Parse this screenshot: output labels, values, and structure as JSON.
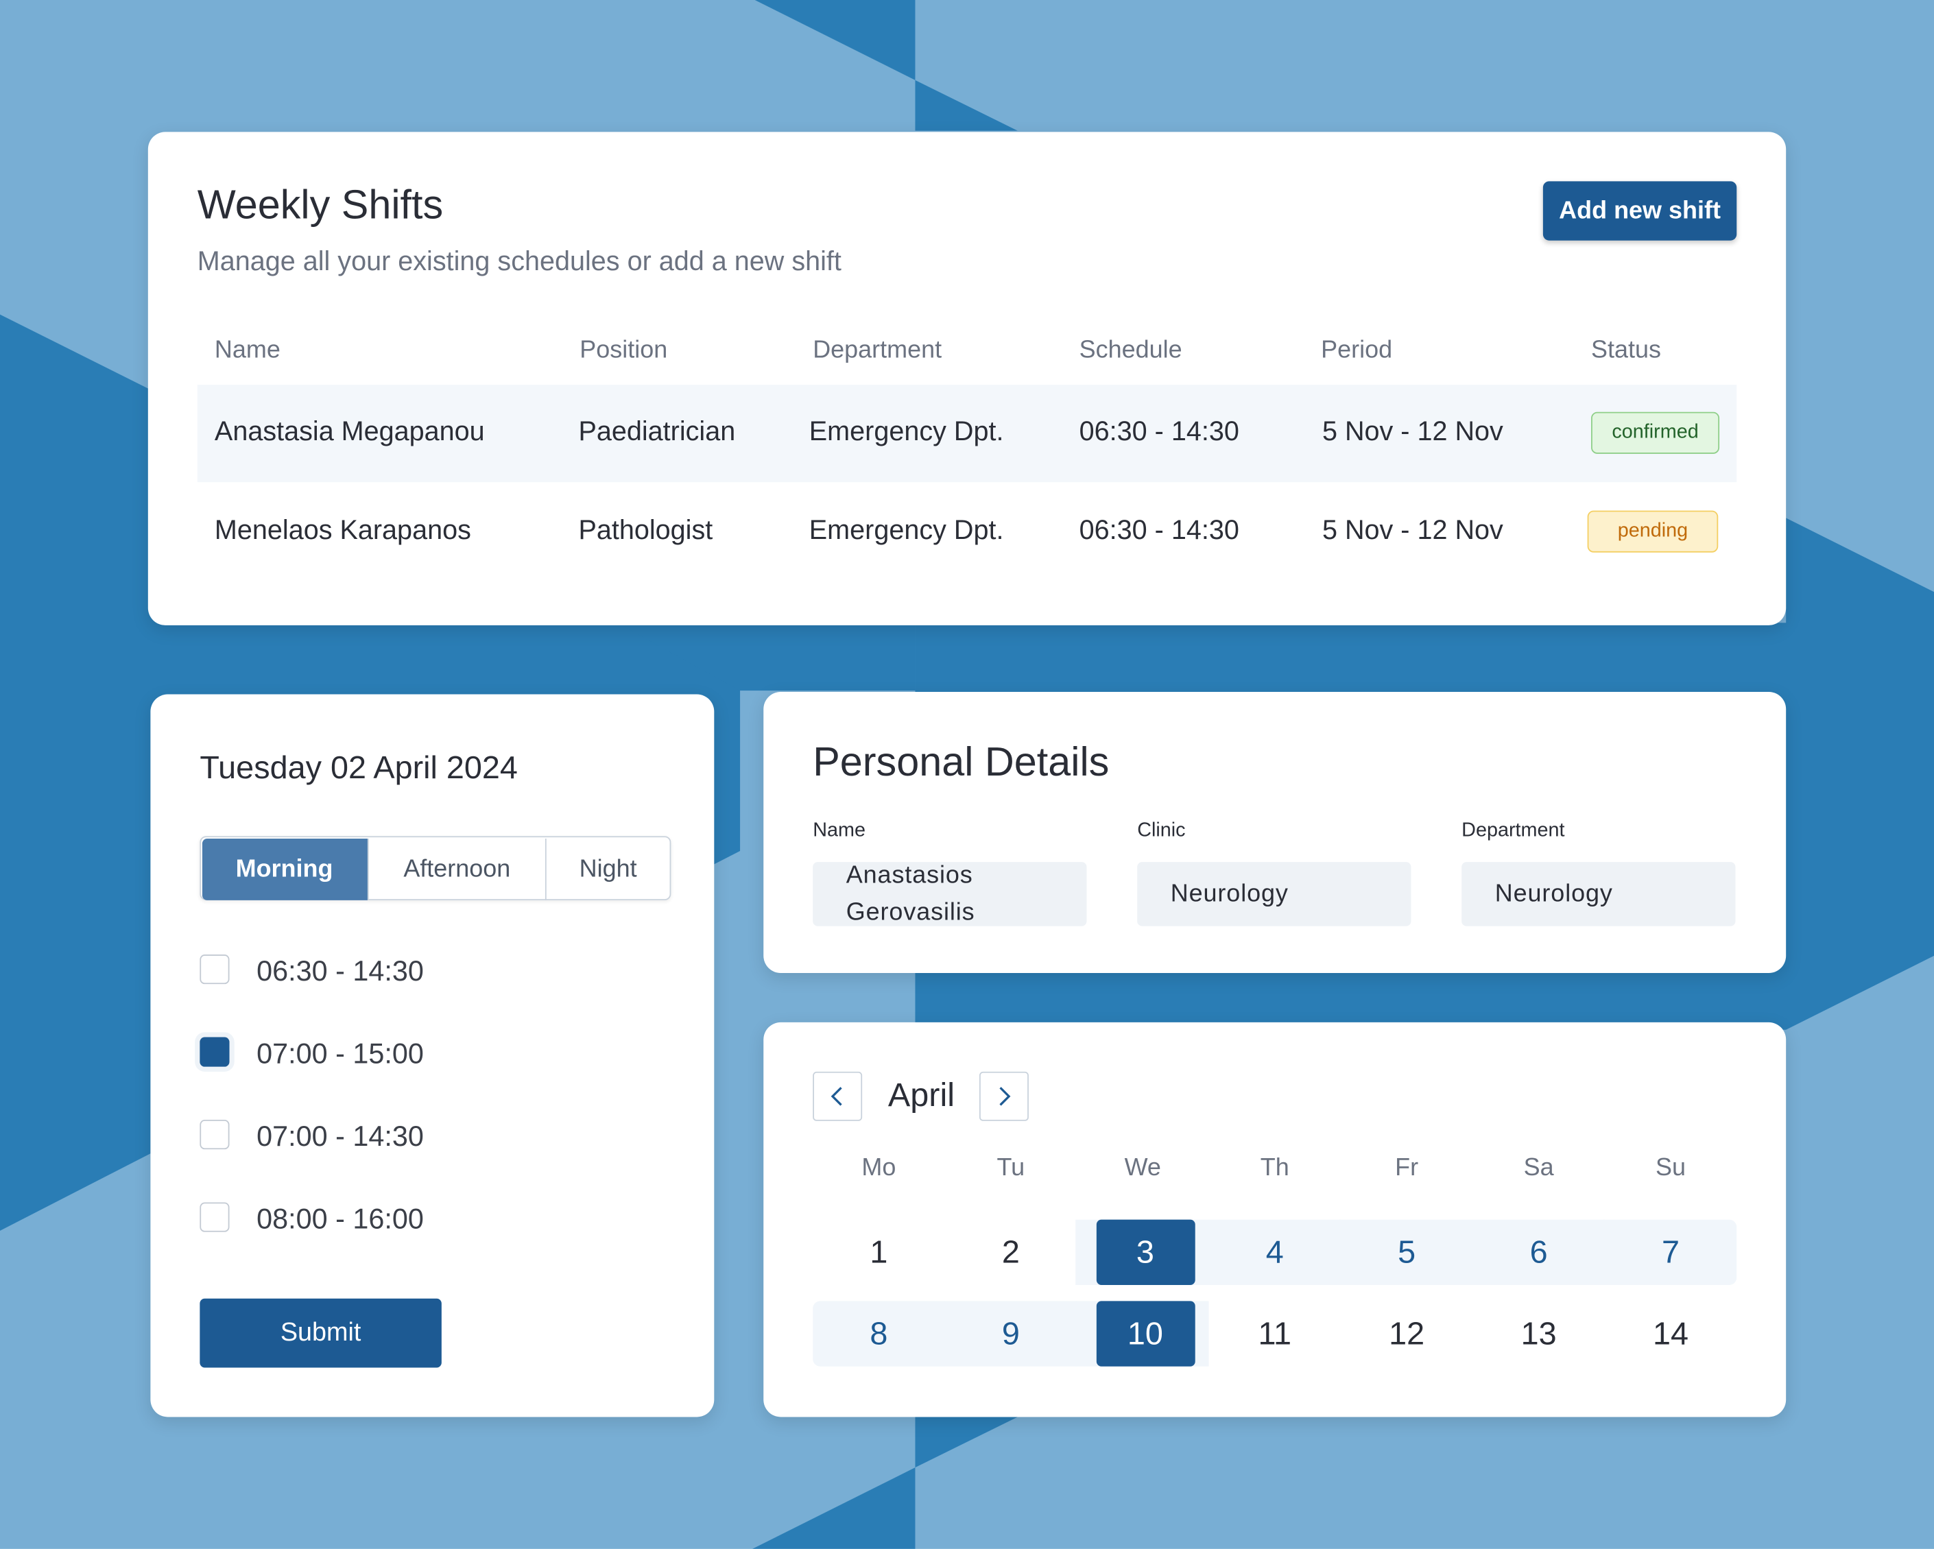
{
  "shifts": {
    "title": "Weekly Shifts",
    "subtitle": "Manage all your existing schedules or add a new shift",
    "button": "Add new shift",
    "columns": [
      "Name",
      "Position",
      "Department",
      "Schedule",
      "Period",
      "Status"
    ],
    "rows": [
      {
        "cells": [
          "Anastasia Megapanou",
          "Paediatrician",
          "Emergency Dpt.",
          "06:30 - 14:30",
          "5 Nov - 12 Nov"
        ],
        "status": "confirmed",
        "tone": "success"
      },
      {
        "cells": [
          "Menelaos Karapanos",
          "Pathologist",
          "Emergency Dpt.",
          "06:30 - 14:30",
          "5 Nov - 12 Nov"
        ],
        "status": "pending",
        "tone": "warning"
      }
    ]
  },
  "day_picker": {
    "date": "Tuesday 02 April 2024",
    "tabs": [
      "Morning",
      "Afternoon",
      "Night"
    ],
    "active_tab": 0,
    "slots": [
      {
        "label": "06:30 - 14:30",
        "checked": false
      },
      {
        "label": "07:00 - 15:00",
        "checked": true
      },
      {
        "label": "07:00 - 14:30",
        "checked": false
      },
      {
        "label": "08:00 - 16:00",
        "checked": false
      }
    ],
    "button": "Submit"
  },
  "personal_details": {
    "title": "Personal Details",
    "fields": [
      {
        "label": "Name",
        "value": "Anastasios Gerovasilis"
      },
      {
        "label": "Clinic",
        "value": "Neurology"
      },
      {
        "label": "Department",
        "value": "Neurology"
      }
    ]
  },
  "calendar": {
    "month": "April",
    "weekdays": [
      "Mo",
      "Tu",
      "We",
      "Th",
      "Fr",
      "Sa",
      "Su"
    ],
    "weeks": [
      [
        {
          "day": 1,
          "state": "plain"
        },
        {
          "day": 2,
          "state": "plain"
        },
        {
          "day": 3,
          "state": "selected"
        },
        {
          "day": 4,
          "state": "range"
        },
        {
          "day": 5,
          "state": "range"
        },
        {
          "day": 6,
          "state": "range"
        },
        {
          "day": 7,
          "state": "range"
        }
      ],
      [
        {
          "day": 8,
          "state": "range"
        },
        {
          "day": 9,
          "state": "range"
        },
        {
          "day": 10,
          "state": "selected"
        },
        {
          "day": 11,
          "state": "plain"
        },
        {
          "day": 12,
          "state": "plain"
        },
        {
          "day": 13,
          "state": "plain"
        },
        {
          "day": 14,
          "state": "plain"
        }
      ]
    ]
  }
}
